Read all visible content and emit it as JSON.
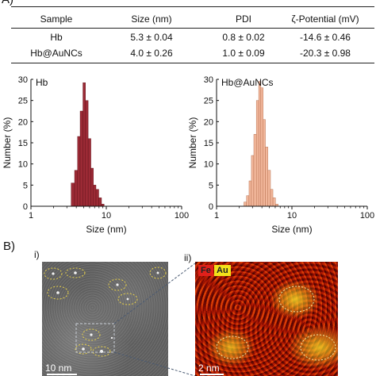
{
  "panel_a_label": "A)",
  "table": {
    "headers": [
      "Sample",
      "Size (nm)",
      "PDI",
      "ζ-Potential (mV)"
    ],
    "rows": [
      [
        "Hb",
        "5.3 ± 0.04",
        "0.8 ± 0.02",
        "-14.6 ± 0.46"
      ],
      [
        "Hb@AuNCs",
        "4.0 ± 0.26",
        "1.0 ± 0.09",
        "-20.3 ± 0.98"
      ]
    ]
  },
  "chart_data": [
    {
      "type": "bar",
      "title": "Hb",
      "xlabel": "Size (nm)",
      "ylabel": "Number (%)",
      "x_scale": "log",
      "xlim": [
        1,
        100
      ],
      "ylim": [
        0,
        30
      ],
      "xticks": [
        "1",
        "10",
        "100"
      ],
      "yticks": [
        "0",
        "5",
        "10",
        "15",
        "20",
        "25",
        "30"
      ],
      "color": "#9b2a35",
      "x": [
        3.6,
        4.0,
        4.3,
        4.7,
        5.1,
        5.5,
        6.0,
        6.5,
        7.0,
        7.6,
        8.3,
        9.0
      ],
      "values": [
        5.5,
        8.5,
        16.5,
        22.5,
        29.2,
        25.0,
        16.0,
        9.0,
        5.0,
        4.0,
        2.0,
        0.5
      ]
    },
    {
      "type": "bar",
      "title": "Hb@AuNCs",
      "xlabel": "Size (nm)",
      "ylabel": "Number (%)",
      "x_scale": "log",
      "xlim": [
        1,
        100
      ],
      "ylim": [
        0,
        30
      ],
      "xticks": [
        "1",
        "10",
        "100"
      ],
      "yticks": [
        "0",
        "5",
        "10",
        "15",
        "20",
        "25",
        "30"
      ],
      "color": "#f2b79b",
      "x": [
        2.4,
        2.6,
        2.8,
        3.0,
        3.25,
        3.5,
        3.75,
        4.0,
        4.3,
        4.6,
        5.0,
        5.4,
        5.8,
        6.3
      ],
      "values": [
        1.0,
        2.5,
        6.0,
        12.0,
        17.0,
        25.0,
        29.5,
        28.0,
        20.5,
        14.0,
        8.5,
        4.0,
        2.0,
        0.5
      ]
    }
  ],
  "panel_b_label": "B)",
  "micro_i": {
    "label": "i)",
    "scale": "10 nm"
  },
  "micro_ii": {
    "label": "ii)",
    "scale": "2 nm",
    "legend_fe": "Fe",
    "legend_au": "Au"
  },
  "colors": {
    "fe": "#e0201b",
    "au": "#f2e11a",
    "circle": "#e9d24a"
  }
}
